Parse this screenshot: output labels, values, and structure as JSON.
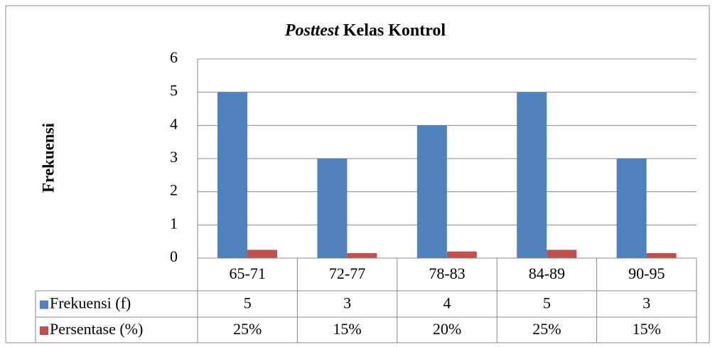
{
  "chart_data": {
    "type": "bar",
    "title": "Posttest Kelas Kontrol",
    "y_label": "Frekuensi",
    "categories": [
      "65-71",
      "72-77",
      "78-83",
      "84-89",
      "90-95"
    ],
    "series": [
      {
        "name": "Frekuensi (f)",
        "color": "#4f81bd",
        "values": [
          5,
          3,
          4,
          5,
          3
        ]
      },
      {
        "name": "Persentase (%)",
        "color": "#c0504d",
        "values": [
          0.25,
          0.15,
          0.2,
          0.25,
          0.15
        ],
        "value_labels": [
          "25%",
          "15%",
          "20%",
          "25%",
          "15%"
        ]
      }
    ],
    "ylim": [
      0,
      6
    ],
    "yticks": [
      0,
      1,
      2,
      3,
      4,
      5,
      6
    ],
    "grid": true,
    "data_table": true
  }
}
